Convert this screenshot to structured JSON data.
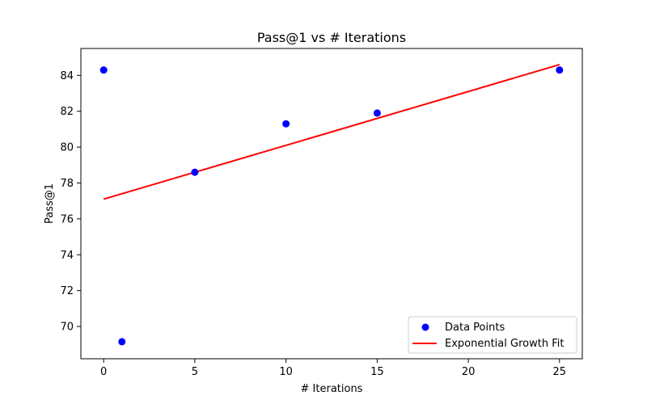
{
  "chart_data": {
    "type": "scatter",
    "title": "Pass@1 vs # Iterations",
    "xlabel": "# Iterations",
    "ylabel": "Pass@1",
    "xlim": [
      -1.25,
      26.25
    ],
    "ylim": [
      68.2,
      85.5
    ],
    "xticks": [
      0,
      5,
      10,
      15,
      20,
      25
    ],
    "yticks": [
      70,
      72,
      74,
      76,
      78,
      80,
      82,
      84
    ],
    "grid": false,
    "legend_position": "lower-right",
    "series": [
      {
        "name": "Data Points",
        "kind": "scatter",
        "color": "#0000ff",
        "x": [
          0,
          1,
          5,
          10,
          15,
          25
        ],
        "y": [
          84.3,
          69.15,
          78.6,
          81.3,
          81.9,
          84.3
        ]
      },
      {
        "name": "Exponential Growth Fit",
        "kind": "line",
        "color": "#ff0000",
        "x": [
          0,
          25
        ],
        "y": [
          77.1,
          84.6
        ]
      }
    ]
  }
}
